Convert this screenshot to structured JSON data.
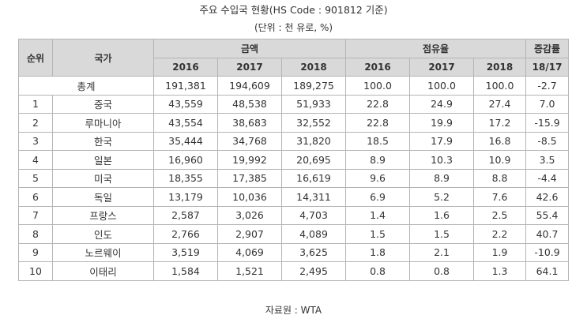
{
  "title": "주요 수입국 현황(HS Code : 901812 기준)",
  "subtitle": "(단위 : 천 유로, %)",
  "header": {
    "rank": "순위",
    "country": "국가",
    "amount": "금액",
    "share": "점유율",
    "change": "증감률",
    "years": [
      "2016",
      "2017",
      "2018"
    ],
    "change_period": "18/17"
  },
  "total": {
    "label": "총계",
    "amount": [
      "191,381",
      "194,609",
      "189,275"
    ],
    "share": [
      "100.0",
      "100.0",
      "100.0"
    ],
    "change": "-2.7"
  },
  "rows": [
    {
      "rank": "1",
      "country": "중국",
      "amount": [
        "43,559",
        "48,538",
        "51,933"
      ],
      "share": [
        "22.8",
        "24.9",
        "27.4"
      ],
      "change": "7.0"
    },
    {
      "rank": "2",
      "country": "루마니아",
      "amount": [
        "43,554",
        "38,683",
        "32,552"
      ],
      "share": [
        "22.8",
        "19.9",
        "17.2"
      ],
      "change": "-15.9"
    },
    {
      "rank": "3",
      "country": "한국",
      "amount": [
        "35,444",
        "34,768",
        "31,820"
      ],
      "share": [
        "18.5",
        "17.9",
        "16.8"
      ],
      "change": "-8.5"
    },
    {
      "rank": "4",
      "country": "일본",
      "amount": [
        "16,960",
        "19,992",
        "20,695"
      ],
      "share": [
        "8.9",
        "10.3",
        "10.9"
      ],
      "change": "3.5"
    },
    {
      "rank": "5",
      "country": "미국",
      "amount": [
        "18,355",
        "17,385",
        "16,619"
      ],
      "share": [
        "9.6",
        "8.9",
        "8.8"
      ],
      "change": "-4.4"
    },
    {
      "rank": "6",
      "country": "독일",
      "amount": [
        "13,179",
        "10,036",
        "14,311"
      ],
      "share": [
        "6.9",
        "5.2",
        "7.6"
      ],
      "change": "42.6"
    },
    {
      "rank": "7",
      "country": "프랑스",
      "amount": [
        "2,587",
        "3,026",
        "4,703"
      ],
      "share": [
        "1.4",
        "1.6",
        "2.5"
      ],
      "change": "55.4"
    },
    {
      "rank": "8",
      "country": "인도",
      "amount": [
        "2,766",
        "2,907",
        "4,089"
      ],
      "share": [
        "1.5",
        "1.5",
        "2.2"
      ],
      "change": "40.7"
    },
    {
      "rank": "9",
      "country": "노르웨이",
      "amount": [
        "3,519",
        "4,069",
        "3,625"
      ],
      "share": [
        "1.8",
        "2.1",
        "1.9"
      ],
      "change": "-10.9"
    },
    {
      "rank": "10",
      "country": "이태리",
      "amount": [
        "1,584",
        "1,521",
        "2,495"
      ],
      "share": [
        "0.8",
        "0.8",
        "1.3"
      ],
      "change": "64.1"
    }
  ],
  "source": "자료원 : WTA"
}
